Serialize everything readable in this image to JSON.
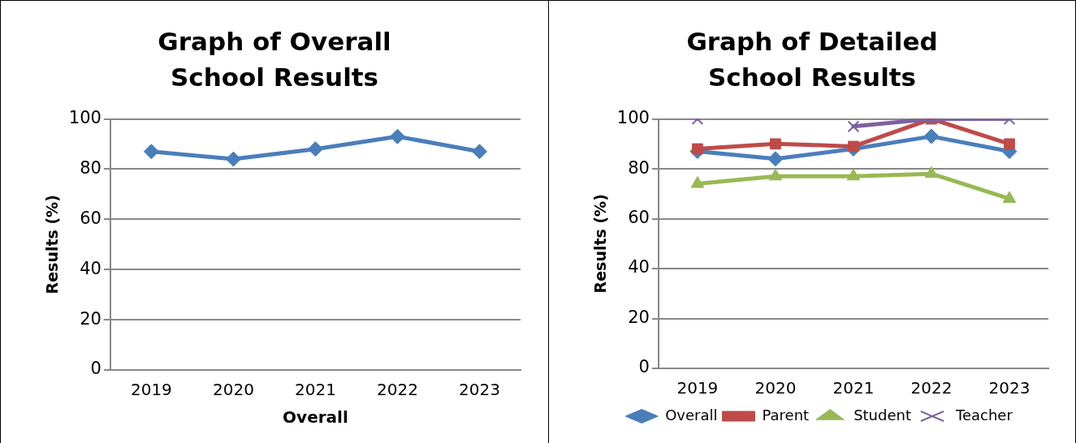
{
  "chart_data": [
    {
      "type": "line",
      "title": "Graph of Overall School Results",
      "xlabel": "Overall",
      "ylabel": "Results (%)",
      "categories": [
        "2019",
        "2020",
        "2021",
        "2022",
        "2023"
      ],
      "series": [
        {
          "color": "#4a7ebb",
          "values": [
            87,
            84,
            88,
            93,
            87
          ]
        }
      ],
      "ylim": [
        0,
        100
      ],
      "yticks": [
        0,
        20,
        40,
        60,
        80,
        100
      ],
      "grid": "y",
      "legend": false,
      "marker": "diamond",
      "line_style": "solid"
    },
    {
      "type": "line",
      "title": "Graph of Detailed School Results",
      "ylabel": "Results (%)",
      "categories": [
        "2019",
        "2020",
        "2021",
        "2022",
        "2023"
      ],
      "series": [
        {
          "name": "Overall",
          "color": "#4a7ebb",
          "marker": "diamond",
          "values": [
            87,
            84,
            88,
            93,
            87
          ]
        },
        {
          "name": "Parent",
          "color": "#be4b48",
          "marker": "square",
          "values": [
            88,
            90,
            89,
            100,
            90
          ]
        },
        {
          "name": "Student",
          "color": "#98b954",
          "marker": "triangle",
          "values": [
            74,
            77,
            77,
            78,
            68
          ]
        },
        {
          "name": "Teacher",
          "color": "#7d60a0",
          "marker": "cross",
          "values": [
            100,
            null,
            97,
            100,
            100
          ]
        }
      ],
      "ylim": [
        0,
        100
      ],
      "yticks": [
        0,
        20,
        40,
        60,
        80,
        100
      ],
      "grid": "y",
      "legend": "bottom",
      "line_style": "solid"
    }
  ]
}
